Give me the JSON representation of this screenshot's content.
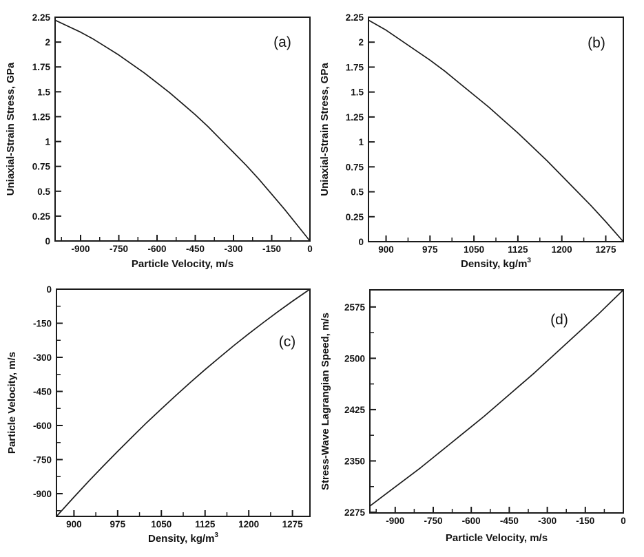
{
  "figure": {
    "background": "#ffffff",
    "line_color": "#1a1a1a",
    "text_color": "#111111"
  },
  "chart_data": [
    {
      "id": "a",
      "panel_label": "(a)",
      "type": "line",
      "title": "",
      "xlabel": "Particle Velocity, m/s",
      "xlabel_sup": "",
      "ylabel": "Uniaxial-Strain Stress, GPa",
      "xlim": [
        -1000,
        0
      ],
      "ylim": [
        0,
        2.25
      ],
      "grid": false,
      "legend": "none",
      "xticks": [
        {
          "v": -900,
          "label": "-900"
        },
        {
          "v": -750,
          "label": "-750"
        },
        {
          "v": -600,
          "label": "-600"
        },
        {
          "v": -450,
          "label": "-450"
        },
        {
          "v": -300,
          "label": "-300"
        },
        {
          "v": -150,
          "label": "-150"
        },
        {
          "v": 0,
          "label": "0"
        }
      ],
      "xminors": [
        -975,
        -825,
        -675,
        -525,
        -375,
        -225,
        -75
      ],
      "yticks": [
        {
          "v": 2.25,
          "label": "2.25"
        },
        {
          "v": 2,
          "label": "2"
        },
        {
          "v": 1.75,
          "label": "1.75"
        },
        {
          "v": 1.5,
          "label": "1.5"
        },
        {
          "v": 1.25,
          "label": "1.25"
        },
        {
          "v": 1,
          "label": "1"
        },
        {
          "v": 0.75,
          "label": "0.75"
        },
        {
          "v": 0.5,
          "label": "0.5"
        },
        {
          "v": 0.25,
          "label": "0.25"
        },
        {
          "v": 0,
          "label": "0"
        }
      ],
      "yminors": [],
      "series": [
        {
          "name": "stress-vs-particle-velocity",
          "points": [
            [
              -1000,
              2.22
            ],
            [
              -950,
              2.16
            ],
            [
              -900,
              2.1
            ],
            [
              -850,
              2.03
            ],
            [
              -800,
              1.95
            ],
            [
              -750,
              1.87
            ],
            [
              -700,
              1.78
            ],
            [
              -650,
              1.69
            ],
            [
              -600,
              1.59
            ],
            [
              -550,
              1.49
            ],
            [
              -500,
              1.38
            ],
            [
              -450,
              1.27
            ],
            [
              -400,
              1.15
            ],
            [
              -350,
              1.02
            ],
            [
              -300,
              0.89
            ],
            [
              -250,
              0.76
            ],
            [
              -200,
              0.62
            ],
            [
              -150,
              0.47
            ],
            [
              -100,
              0.32
            ],
            [
              -50,
              0.16
            ],
            [
              0,
              0
            ]
          ]
        }
      ]
    },
    {
      "id": "b",
      "panel_label": "(b)",
      "type": "line",
      "title": "",
      "xlabel": "Density, kg/m",
      "xlabel_sup": "3",
      "ylabel": "Uniaxial-Strain Stress, GPa",
      "xlim": [
        870,
        1305
      ],
      "ylim": [
        0,
        2.25
      ],
      "grid": false,
      "legend": "none",
      "xticks": [
        {
          "v": 900,
          "label": "900"
        },
        {
          "v": 975,
          "label": "975"
        },
        {
          "v": 1050,
          "label": "1050"
        },
        {
          "v": 1125,
          "label": "1125"
        },
        {
          "v": 1200,
          "label": "1200"
        },
        {
          "v": 1275,
          "label": "1275"
        }
      ],
      "xminors": [
        937.5,
        1012.5,
        1087.5,
        1162.5,
        1237.5
      ],
      "yticks": [
        {
          "v": 2.25,
          "label": "2.25"
        },
        {
          "v": 2,
          "label": "2"
        },
        {
          "v": 1.75,
          "label": "1.75"
        },
        {
          "v": 1.5,
          "label": "1.5"
        },
        {
          "v": 1.25,
          "label": "1.25"
        },
        {
          "v": 1,
          "label": "1"
        },
        {
          "v": 0.75,
          "label": "0.75"
        },
        {
          "v": 0.5,
          "label": "0.5"
        },
        {
          "v": 0.25,
          "label": "0.25"
        },
        {
          "v": 0,
          "label": "0"
        }
      ],
      "yminors": [],
      "series": [
        {
          "name": "stress-vs-density",
          "points": [
            [
              870,
              2.22
            ],
            [
              900,
              2.12
            ],
            [
              925,
              2.02
            ],
            [
              950,
              1.92
            ],
            [
              975,
              1.82
            ],
            [
              1000,
              1.71
            ],
            [
              1025,
              1.59
            ],
            [
              1050,
              1.47
            ],
            [
              1075,
              1.35
            ],
            [
              1100,
              1.22
            ],
            [
              1125,
              1.09
            ],
            [
              1150,
              0.95
            ],
            [
              1175,
              0.81
            ],
            [
              1200,
              0.66
            ],
            [
              1225,
              0.51
            ],
            [
              1250,
              0.36
            ],
            [
              1275,
              0.2
            ],
            [
              1305,
              0
            ]
          ]
        }
      ]
    },
    {
      "id": "c",
      "panel_label": "(c)",
      "type": "line",
      "title": "",
      "xlabel": "Density, kg/m",
      "xlabel_sup": "3",
      "ylabel": "Particle Velocity, m/s",
      "xlim": [
        870,
        1305
      ],
      "ylim": [
        -1000,
        0
      ],
      "grid": false,
      "legend": "none",
      "xticks": [
        {
          "v": 900,
          "label": "900"
        },
        {
          "v": 975,
          "label": "975"
        },
        {
          "v": 1050,
          "label": "1050"
        },
        {
          "v": 1125,
          "label": "1125"
        },
        {
          "v": 1200,
          "label": "1200"
        },
        {
          "v": 1275,
          "label": "1275"
        }
      ],
      "xminors": [
        937.5,
        1012.5,
        1087.5,
        1162.5,
        1237.5
      ],
      "yticks": [
        {
          "v": 0,
          "label": "0"
        },
        {
          "v": -150,
          "label": "-150"
        },
        {
          "v": -300,
          "label": "-300"
        },
        {
          "v": -450,
          "label": "-450"
        },
        {
          "v": -600,
          "label": "-600"
        },
        {
          "v": -750,
          "label": "-750"
        },
        {
          "v": -900,
          "label": "-900"
        }
      ],
      "yminors": [
        -75,
        -225,
        -375,
        -525,
        -675,
        -825,
        -975
      ],
      "series": [
        {
          "name": "particle-velocity-vs-density",
          "points": [
            [
              870,
              -1000
            ],
            [
              900,
              -915
            ],
            [
              925,
              -846
            ],
            [
              950,
              -779
            ],
            [
              975,
              -714
            ],
            [
              1000,
              -650
            ],
            [
              1025,
              -587
            ],
            [
              1050,
              -527
            ],
            [
              1075,
              -468
            ],
            [
              1100,
              -410
            ],
            [
              1125,
              -354
            ],
            [
              1150,
              -300
            ],
            [
              1175,
              -247
            ],
            [
              1200,
              -196
            ],
            [
              1225,
              -147
            ],
            [
              1250,
              -99
            ],
            [
              1275,
              -53
            ],
            [
              1305,
              0
            ]
          ]
        }
      ]
    },
    {
      "id": "d",
      "panel_label": "(d)",
      "type": "line",
      "title": "",
      "xlabel": "Particle Velocity, m/s",
      "xlabel_sup": "",
      "ylabel": "Stress-Wave Lagrangian Speed, m/s",
      "xlim": [
        -1000,
        0
      ],
      "ylim": [
        2274,
        2600
      ],
      "grid": false,
      "legend": "none",
      "xticks": [
        {
          "v": -900,
          "label": "-900"
        },
        {
          "v": -750,
          "label": "-750"
        },
        {
          "v": -600,
          "label": "-600"
        },
        {
          "v": -450,
          "label": "-450"
        },
        {
          "v": -300,
          "label": "-300"
        },
        {
          "v": -150,
          "label": "-150"
        },
        {
          "v": 0,
          "label": "0"
        }
      ],
      "xminors": [
        -975,
        -825,
        -675,
        -525,
        -375,
        -225,
        -75
      ],
      "yticks": [
        {
          "v": 2575,
          "label": "2575"
        },
        {
          "v": 2500,
          "label": "2500"
        },
        {
          "v": 2425,
          "label": "2425"
        },
        {
          "v": 2350,
          "label": "2350"
        },
        {
          "v": 2275,
          "label": "2275"
        }
      ],
      "yminors": [
        2312.5,
        2387.5,
        2462.5,
        2537.5
      ],
      "series": [
        {
          "name": "lagrangian-speed-vs-particle-velocity",
          "points": [
            [
              -1000,
              2284
            ],
            [
              -950,
              2298
            ],
            [
              -900,
              2312
            ],
            [
              -850,
              2326
            ],
            [
              -800,
              2340
            ],
            [
              -750,
              2355
            ],
            [
              -700,
              2370
            ],
            [
              -650,
              2385
            ],
            [
              -600,
              2400
            ],
            [
              -550,
              2415
            ],
            [
              -500,
              2431
            ],
            [
              -450,
              2447
            ],
            [
              -400,
              2463
            ],
            [
              -350,
              2479
            ],
            [
              -300,
              2496
            ],
            [
              -250,
              2513
            ],
            [
              -200,
              2530
            ],
            [
              -150,
              2547
            ],
            [
              -100,
              2564
            ],
            [
              -50,
              2582
            ],
            [
              0,
              2600
            ]
          ]
        }
      ]
    }
  ]
}
